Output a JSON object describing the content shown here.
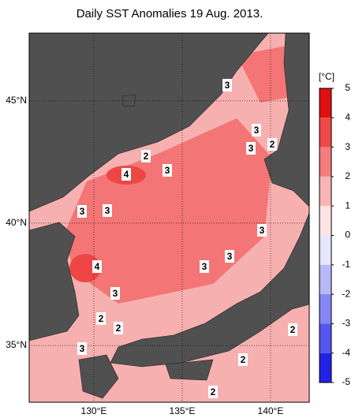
{
  "title": "Daily SST Anomalies 19 Aug. 2013.",
  "map": {
    "xlim": [
      126.34,
      142.19
    ],
    "ylim": [
      32.68,
      47.77
    ],
    "xticks": [
      {
        "value": 130,
        "label": "130°E"
      },
      {
        "value": 135,
        "label": "135°E"
      },
      {
        "value": 140,
        "label": "140°E"
      }
    ],
    "yticks": [
      {
        "value": 35,
        "label": "35°N"
      },
      {
        "value": 40,
        "label": "40°N"
      },
      {
        "value": 45,
        "label": "45°N"
      }
    ],
    "contour_labels": [
      3,
      3,
      3,
      2,
      2,
      3,
      4,
      3,
      3,
      3,
      3,
      3,
      4,
      3,
      2,
      2,
      2,
      3,
      2,
      2
    ]
  },
  "colorbar": {
    "label": "[°C]",
    "ticks": [
      5,
      4,
      3,
      2,
      1,
      0,
      -1,
      -2,
      -3,
      -4,
      -5
    ],
    "colors": [
      "#e01010",
      "#f04848",
      "#f57d7d",
      "#f9b4b4",
      "#fde4e4",
      "#e6e6fc",
      "#b8b8f8",
      "#8585f5",
      "#5555f0",
      "#2222e6"
    ]
  }
}
